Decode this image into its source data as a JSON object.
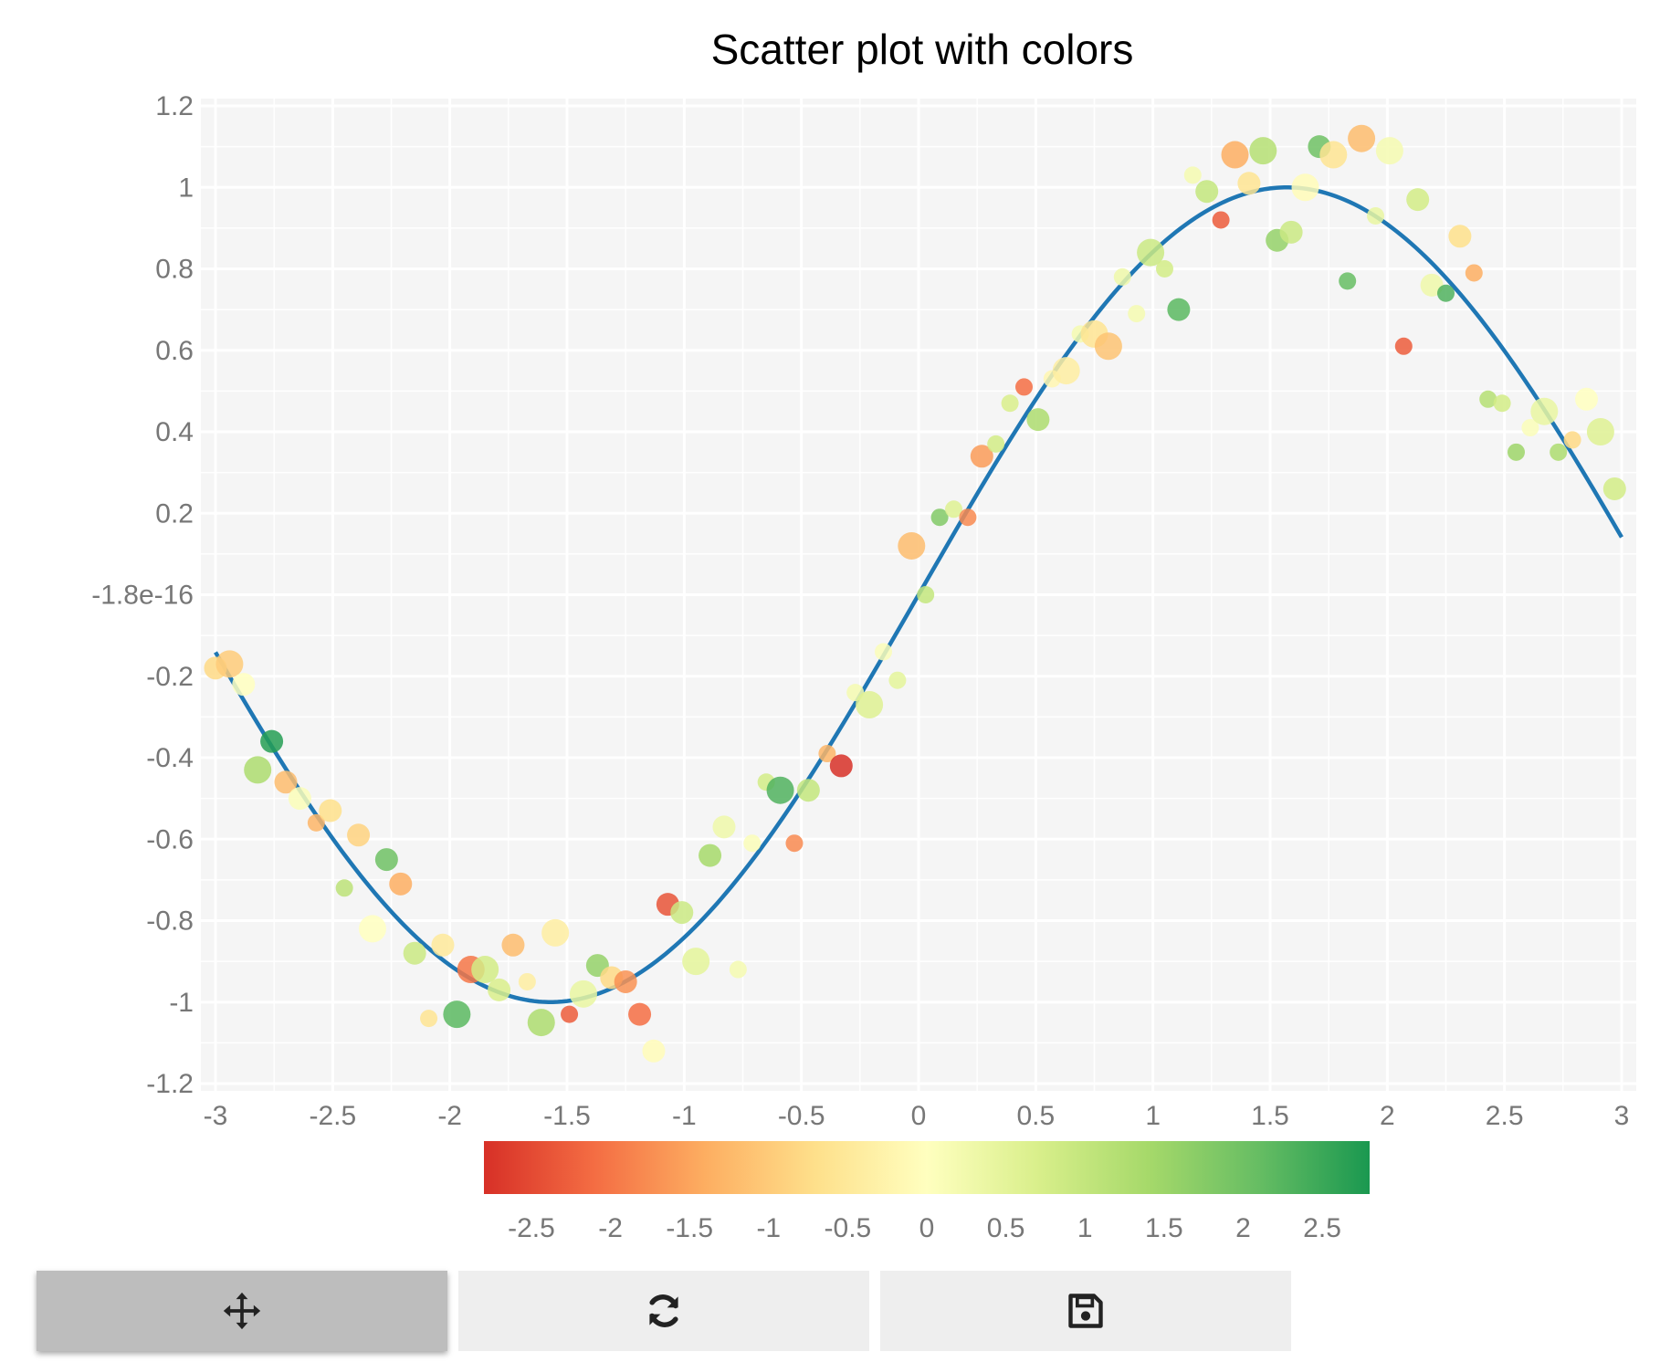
{
  "chart_data": {
    "type": "scatter",
    "title": "Scatter plot with colors",
    "xlim": [
      -3.05,
      3.05
    ],
    "ylim": [
      -1.22,
      1.22
    ],
    "x_ticks": [
      {
        "value": -3,
        "label": "-3"
      },
      {
        "value": -2.5,
        "label": "-2.5"
      },
      {
        "value": -2,
        "label": "-2"
      },
      {
        "value": -1.5,
        "label": "-1.5"
      },
      {
        "value": -1,
        "label": "-1"
      },
      {
        "value": -0.5,
        "label": "-0.5"
      },
      {
        "value": 0,
        "label": "0"
      },
      {
        "value": 0.5,
        "label": "0.5"
      },
      {
        "value": 1,
        "label": "1"
      },
      {
        "value": 1.5,
        "label": "1.5"
      },
      {
        "value": 2,
        "label": "2"
      },
      {
        "value": 2.5,
        "label": "2.5"
      },
      {
        "value": 3,
        "label": "3"
      }
    ],
    "y_ticks": [
      {
        "value": 1.2,
        "label": "1.2"
      },
      {
        "value": 1,
        "label": "1"
      },
      {
        "value": 0.8,
        "label": "0.8"
      },
      {
        "value": 0.6,
        "label": "0.6"
      },
      {
        "value": 0.4,
        "label": "0.4"
      },
      {
        "value": 0.2,
        "label": "0.2"
      },
      {
        "value": 0,
        "label": "-1.8e-16"
      },
      {
        "value": -0.2,
        "label": "-0.2"
      },
      {
        "value": -0.4,
        "label": "-0.4"
      },
      {
        "value": -0.6,
        "label": "-0.6"
      },
      {
        "value": -0.8,
        "label": "-0.8"
      },
      {
        "value": -1,
        "label": "-1"
      },
      {
        "value": -1.2,
        "label": "-1.2"
      }
    ],
    "grid": true,
    "line": {
      "function": "sin(x)",
      "x_range": [
        -3,
        3
      ],
      "color": "#1f77b4"
    },
    "colorbar": {
      "range": [
        -2.8,
        2.8
      ],
      "colors": [
        "#d73027",
        "#f46d43",
        "#fdae61",
        "#fee08b",
        "#ffffbf",
        "#d9ef8b",
        "#a6d96a",
        "#66bd63",
        "#1a9850"
      ],
      "ticks": [
        {
          "value": -2.5,
          "label": "-2.5"
        },
        {
          "value": -2,
          "label": "-2"
        },
        {
          "value": -1.5,
          "label": "-1.5"
        },
        {
          "value": -1,
          "label": "-1"
        },
        {
          "value": -0.5,
          "label": "-0.5"
        },
        {
          "value": 0,
          "label": "0"
        },
        {
          "value": 0.5,
          "label": "0.5"
        },
        {
          "value": 1,
          "label": "1"
        },
        {
          "value": 1.5,
          "label": "1.5"
        },
        {
          "value": 2,
          "label": "2"
        },
        {
          "value": 2.5,
          "label": "2.5"
        }
      ]
    },
    "points": [
      {
        "x": -3.0,
        "y": -0.18,
        "c": -0.8,
        "s": 1
      },
      {
        "x": -2.94,
        "y": -0.17,
        "c": -1.0,
        "s": 2
      },
      {
        "x": -2.88,
        "y": -0.22,
        "c": 0.0,
        "s": 1
      },
      {
        "x": -2.76,
        "y": -0.36,
        "c": 2.7,
        "s": 1
      },
      {
        "x": -2.82,
        "y": -0.43,
        "c": 1.3,
        "s": 2
      },
      {
        "x": -2.7,
        "y": -0.46,
        "c": -1.2,
        "s": 1
      },
      {
        "x": -2.64,
        "y": -0.5,
        "c": 0.1,
        "s": 1
      },
      {
        "x": -2.57,
        "y": -0.56,
        "c": -1.3,
        "s": 0
      },
      {
        "x": -2.51,
        "y": -0.53,
        "c": -0.7,
        "s": 1
      },
      {
        "x": -2.45,
        "y": -0.72,
        "c": 1.1,
        "s": 0
      },
      {
        "x": -2.39,
        "y": -0.59,
        "c": -0.9,
        "s": 1
      },
      {
        "x": -2.27,
        "y": -0.65,
        "c": 2.0,
        "s": 1
      },
      {
        "x": -2.21,
        "y": -0.71,
        "c": -1.4,
        "s": 1
      },
      {
        "x": -2.33,
        "y": -0.82,
        "c": 0.0,
        "s": 2
      },
      {
        "x": -2.15,
        "y": -0.88,
        "c": 0.9,
        "s": 1
      },
      {
        "x": -2.09,
        "y": -1.04,
        "c": -0.6,
        "s": 0
      },
      {
        "x": -2.03,
        "y": -0.86,
        "c": -0.5,
        "s": 1
      },
      {
        "x": -1.97,
        "y": -1.03,
        "c": 2.2,
        "s": 2
      },
      {
        "x": -1.91,
        "y": -0.92,
        "c": -2.0,
        "s": 2
      },
      {
        "x": -1.85,
        "y": -0.92,
        "c": 0.8,
        "s": 2
      },
      {
        "x": -1.79,
        "y": -0.97,
        "c": 0.7,
        "s": 1
      },
      {
        "x": -1.73,
        "y": -0.86,
        "c": -1.2,
        "s": 1
      },
      {
        "x": -1.67,
        "y": -0.95,
        "c": -0.4,
        "s": 0
      },
      {
        "x": -1.61,
        "y": -1.05,
        "c": 1.3,
        "s": 2
      },
      {
        "x": -1.55,
        "y": -0.83,
        "c": -0.4,
        "s": 2
      },
      {
        "x": -1.49,
        "y": -1.03,
        "c": -2.3,
        "s": 0
      },
      {
        "x": -1.43,
        "y": -0.98,
        "c": 0.4,
        "s": 2
      },
      {
        "x": -1.37,
        "y": -0.91,
        "c": 1.6,
        "s": 1
      },
      {
        "x": -1.31,
        "y": -0.94,
        "c": -0.8,
        "s": 1
      },
      {
        "x": -1.25,
        "y": -0.95,
        "c": -1.7,
        "s": 1
      },
      {
        "x": -1.19,
        "y": -1.03,
        "c": -2.1,
        "s": 1
      },
      {
        "x": -1.13,
        "y": -1.12,
        "c": -0.1,
        "s": 1
      },
      {
        "x": -1.07,
        "y": -0.76,
        "c": -2.4,
        "s": 1
      },
      {
        "x": -1.01,
        "y": -0.78,
        "c": 0.9,
        "s": 1
      },
      {
        "x": -0.95,
        "y": -0.9,
        "c": 0.5,
        "s": 2
      },
      {
        "x": -0.89,
        "y": -0.64,
        "c": 1.4,
        "s": 1
      },
      {
        "x": -0.83,
        "y": -0.57,
        "c": 0.3,
        "s": 1
      },
      {
        "x": -0.77,
        "y": -0.92,
        "c": 0.2,
        "s": 0
      },
      {
        "x": -0.71,
        "y": -0.61,
        "c": 0.1,
        "s": 0
      },
      {
        "x": -0.65,
        "y": -0.46,
        "c": 0.8,
        "s": 0
      },
      {
        "x": -0.59,
        "y": -0.48,
        "c": 2.3,
        "s": 2
      },
      {
        "x": -0.53,
        "y": -0.61,
        "c": -1.8,
        "s": 0
      },
      {
        "x": -0.47,
        "y": -0.48,
        "c": 1.0,
        "s": 1
      },
      {
        "x": -0.39,
        "y": -0.39,
        "c": -1.3,
        "s": 0
      },
      {
        "x": -0.33,
        "y": -0.42,
        "c": -2.8,
        "s": 1
      },
      {
        "x": -0.27,
        "y": -0.24,
        "c": 0.2,
        "s": 0
      },
      {
        "x": -0.21,
        "y": -0.27,
        "c": 0.6,
        "s": 2
      },
      {
        "x": -0.15,
        "y": -0.14,
        "c": 0.1,
        "s": 0
      },
      {
        "x": -0.09,
        "y": -0.21,
        "c": 0.5,
        "s": 0
      },
      {
        "x": -0.03,
        "y": 0.12,
        "c": -1.2,
        "s": 2
      },
      {
        "x": 0.03,
        "y": -0.0,
        "c": 1.0,
        "s": 0
      },
      {
        "x": 0.09,
        "y": 0.19,
        "c": 1.8,
        "s": 0
      },
      {
        "x": 0.15,
        "y": 0.21,
        "c": 0.6,
        "s": 0
      },
      {
        "x": 0.21,
        "y": 0.19,
        "c": -1.8,
        "s": 0
      },
      {
        "x": 0.27,
        "y": 0.34,
        "c": -1.6,
        "s": 1
      },
      {
        "x": 0.33,
        "y": 0.37,
        "c": 0.8,
        "s": 0
      },
      {
        "x": 0.39,
        "y": 0.47,
        "c": 0.7,
        "s": 0
      },
      {
        "x": 0.45,
        "y": 0.51,
        "c": -2.1,
        "s": 0
      },
      {
        "x": 0.51,
        "y": 0.43,
        "c": 1.3,
        "s": 1
      },
      {
        "x": 0.57,
        "y": 0.53,
        "c": -0.2,
        "s": 0
      },
      {
        "x": 0.63,
        "y": 0.55,
        "c": -0.4,
        "s": 2
      },
      {
        "x": 0.69,
        "y": 0.64,
        "c": 0.2,
        "s": 0
      },
      {
        "x": 0.75,
        "y": 0.64,
        "c": -0.6,
        "s": 2
      },
      {
        "x": 0.81,
        "y": 0.61,
        "c": -1.1,
        "s": 2
      },
      {
        "x": 0.87,
        "y": 0.78,
        "c": 0.3,
        "s": 0
      },
      {
        "x": 0.93,
        "y": 0.69,
        "c": 0.2,
        "s": 0
      },
      {
        "x": 0.99,
        "y": 0.84,
        "c": 0.9,
        "s": 2
      },
      {
        "x": 1.05,
        "y": 0.8,
        "c": 0.8,
        "s": 0
      },
      {
        "x": 1.11,
        "y": 0.7,
        "c": 2.2,
        "s": 1
      },
      {
        "x": 1.17,
        "y": 1.03,
        "c": 0.2,
        "s": 0
      },
      {
        "x": 1.23,
        "y": 0.99,
        "c": 1.0,
        "s": 1
      },
      {
        "x": 1.29,
        "y": 0.92,
        "c": -2.3,
        "s": 0
      },
      {
        "x": 1.35,
        "y": 1.08,
        "c": -1.4,
        "s": 2
      },
      {
        "x": 1.41,
        "y": 1.01,
        "c": -0.6,
        "s": 1
      },
      {
        "x": 1.47,
        "y": 1.09,
        "c": 1.2,
        "s": 2
      },
      {
        "x": 1.53,
        "y": 0.87,
        "c": 1.6,
        "s": 1
      },
      {
        "x": 1.59,
        "y": 0.89,
        "c": 0.9,
        "s": 1
      },
      {
        "x": 1.65,
        "y": 1.0,
        "c": -0.1,
        "s": 2
      },
      {
        "x": 1.71,
        "y": 1.1,
        "c": 2.0,
        "s": 1
      },
      {
        "x": 1.77,
        "y": 1.08,
        "c": -0.6,
        "s": 2
      },
      {
        "x": 1.83,
        "y": 0.77,
        "c": 2.1,
        "s": 0
      },
      {
        "x": 1.89,
        "y": 1.12,
        "c": -1.2,
        "s": 2
      },
      {
        "x": 1.95,
        "y": 0.93,
        "c": 0.4,
        "s": 0
      },
      {
        "x": 2.01,
        "y": 1.09,
        "c": 0.2,
        "s": 2
      },
      {
        "x": 2.07,
        "y": 0.61,
        "c": -2.3,
        "s": 0
      },
      {
        "x": 2.13,
        "y": 0.97,
        "c": 0.8,
        "s": 1
      },
      {
        "x": 2.19,
        "y": 0.76,
        "c": 0.3,
        "s": 1
      },
      {
        "x": 2.25,
        "y": 0.74,
        "c": 2.3,
        "s": 0
      },
      {
        "x": 2.31,
        "y": 0.88,
        "c": -0.7,
        "s": 1
      },
      {
        "x": 2.37,
        "y": 0.79,
        "c": -1.4,
        "s": 0
      },
      {
        "x": 2.43,
        "y": 0.48,
        "c": 1.2,
        "s": 0
      },
      {
        "x": 2.49,
        "y": 0.47,
        "c": 0.8,
        "s": 0
      },
      {
        "x": 2.55,
        "y": 0.35,
        "c": 1.5,
        "s": 0
      },
      {
        "x": 2.61,
        "y": 0.41,
        "c": 0.1,
        "s": 0
      },
      {
        "x": 2.67,
        "y": 0.45,
        "c": 0.4,
        "s": 2
      },
      {
        "x": 2.73,
        "y": 0.35,
        "c": 1.3,
        "s": 0
      },
      {
        "x": 2.79,
        "y": 0.38,
        "c": -0.8,
        "s": 0
      },
      {
        "x": 2.85,
        "y": 0.48,
        "c": -0.0,
        "s": 1
      },
      {
        "x": 2.91,
        "y": 0.4,
        "c": 0.6,
        "s": 2
      },
      {
        "x": 2.97,
        "y": 0.26,
        "c": 0.8,
        "s": 1
      }
    ]
  },
  "toolbar": {
    "buttons": [
      {
        "name": "pan-button",
        "icon": "move-icon",
        "active": true
      },
      {
        "name": "reset-button",
        "icon": "refresh-icon",
        "active": false
      },
      {
        "name": "save-button",
        "icon": "save-icon",
        "active": false
      }
    ]
  }
}
